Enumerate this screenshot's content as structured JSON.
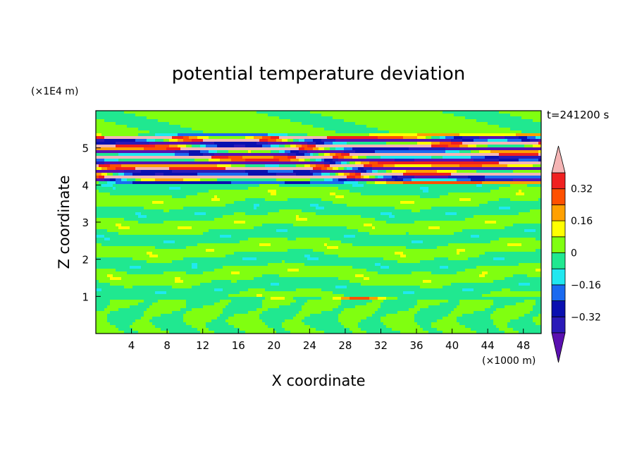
{
  "chart_data": {
    "type": "heatmap",
    "title": "potential temperature deviation",
    "xlabel": "X coordinate",
    "ylabel": "Z coordinate",
    "x_unit": "(×1000 m)",
    "y_unit": "(×1E4 m)",
    "time_label": "t=241200 s",
    "xlim": [
      0,
      50
    ],
    "ylim": [
      0,
      6
    ],
    "x_ticks": [
      4,
      8,
      12,
      16,
      20,
      24,
      28,
      32,
      36,
      40,
      44,
      48
    ],
    "y_ticks": [
      1,
      2,
      3,
      4,
      5
    ],
    "x_tick_labels": [
      "4",
      "8",
      "12",
      "16",
      "20",
      "24",
      "28",
      "32",
      "36",
      "40",
      "44",
      "48"
    ],
    "y_tick_labels": [
      "1",
      "2",
      "3",
      "4",
      "5"
    ],
    "colorbar": {
      "levels": [
        -0.4,
        -0.32,
        -0.24,
        -0.16,
        -0.08,
        0,
        0.08,
        0.16,
        0.24,
        0.32,
        0.4
      ],
      "labeled_levels": [
        0.32,
        0.16,
        0,
        -0.16,
        -0.32
      ],
      "labels": [
        "0.32",
        "0.16",
        "0",
        "−0.16",
        "−0.32"
      ],
      "colors_low_to_high": [
        "#5a10b0",
        "#2a1ab8",
        "#0a10b0",
        "#1a6af0",
        "#20e8f0",
        "#20e890",
        "#80ff10",
        "#ffff00",
        "#ffa000",
        "#ff5000",
        "#f02020",
        "#f5b5b5"
      ]
    },
    "features": [
      {
        "z_range": [
          0,
          0.9
        ],
        "description_value": "mixed near-zero deviations"
      },
      {
        "z_range": [
          0.9,
          1.0
        ],
        "peak_value": 0.3
      },
      {
        "z_range": [
          1.0,
          4.0
        ],
        "description_value": "near-zero banded deviations"
      },
      {
        "z_range": [
          4.0,
          5.4
        ],
        "amplitude": 0.4
      }
    ]
  }
}
